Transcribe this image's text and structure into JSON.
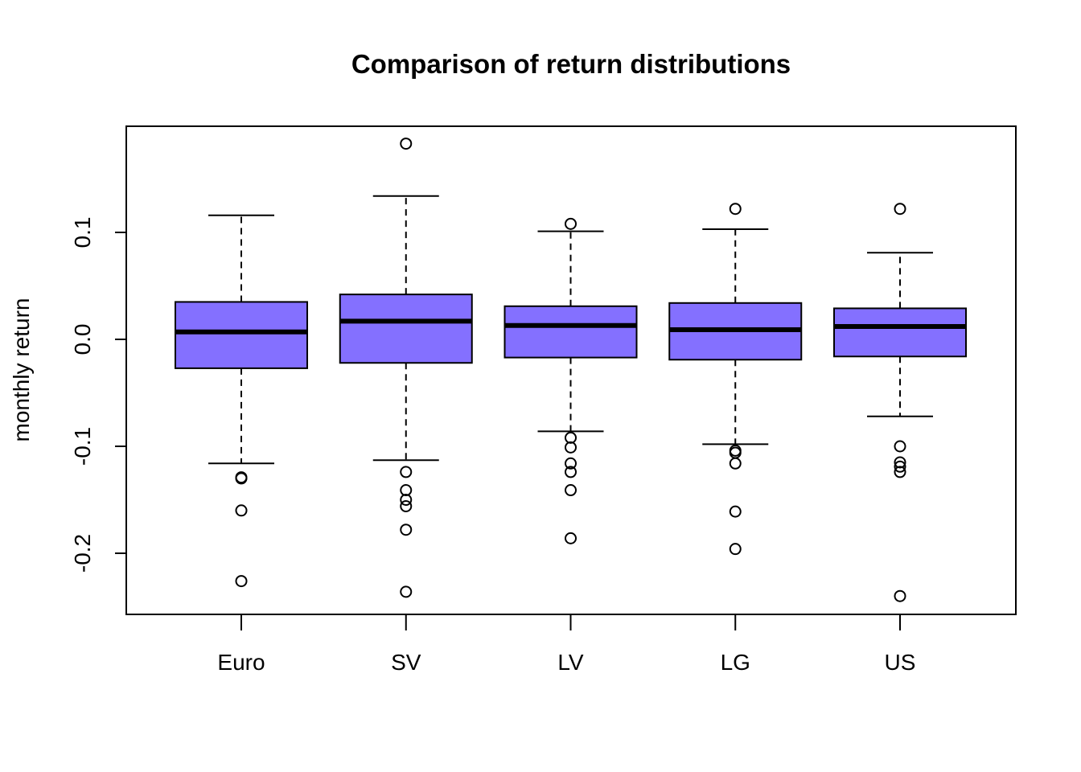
{
  "chart_data": {
    "type": "boxplot",
    "title": "Comparison of return distributions",
    "xlabel": "",
    "ylabel": "monthly return",
    "ylim": [
      -0.255,
      0.2
    ],
    "yticks": [
      -0.2,
      -0.1,
      0.0,
      0.1
    ],
    "ytick_labels": [
      "-0.2",
      "-0.1",
      "0.0",
      "0.1"
    ],
    "grid": false,
    "legend": "none",
    "box_color": "#8470FF",
    "categories": [
      "Euro",
      "SV",
      "LV",
      "LG",
      "US"
    ],
    "boxes": [
      {
        "name": "Euro",
        "whisker_low": -0.116,
        "q1": -0.027,
        "median": 0.007,
        "q3": 0.035,
        "whisker_high": 0.116,
        "outliers": [
          -0.129,
          -0.13,
          -0.16,
          -0.226
        ]
      },
      {
        "name": "SV",
        "whisker_low": -0.113,
        "q1": -0.022,
        "median": 0.017,
        "q3": 0.042,
        "whisker_high": 0.134,
        "outliers": [
          0.183,
          -0.124,
          -0.141,
          -0.15,
          -0.156,
          -0.178,
          -0.236
        ]
      },
      {
        "name": "LV",
        "whisker_low": -0.086,
        "q1": -0.017,
        "median": 0.013,
        "q3": 0.031,
        "whisker_high": 0.101,
        "outliers": [
          0.108,
          -0.092,
          -0.101,
          -0.116,
          -0.124,
          -0.141,
          -0.186
        ]
      },
      {
        "name": "LG",
        "whisker_low": -0.098,
        "q1": -0.019,
        "median": 0.009,
        "q3": 0.034,
        "whisker_high": 0.103,
        "outliers": [
          0.122,
          -0.104,
          -0.106,
          -0.116,
          -0.161,
          -0.196
        ]
      },
      {
        "name": "US",
        "whisker_low": -0.072,
        "q1": -0.016,
        "median": 0.012,
        "q3": 0.029,
        "whisker_high": 0.081,
        "outliers": [
          0.122,
          -0.1,
          -0.115,
          -0.119,
          -0.124,
          -0.24
        ]
      }
    ]
  }
}
